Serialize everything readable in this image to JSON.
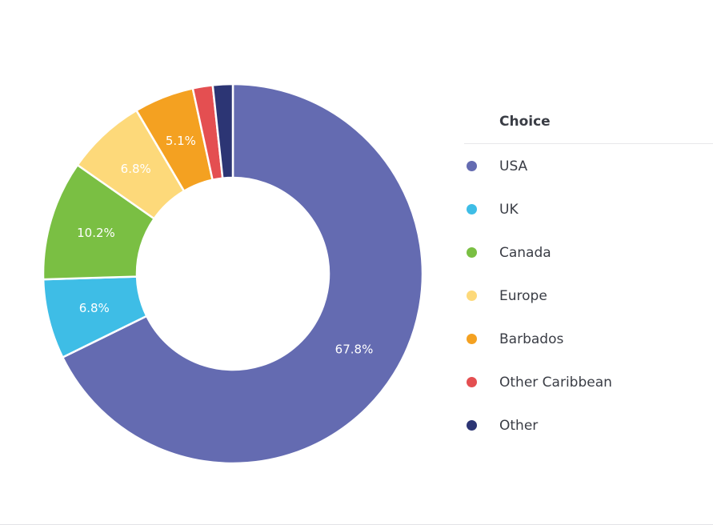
{
  "chart_data": {
    "type": "pie",
    "legend_title": "Choice",
    "legend_position": "right",
    "labels": [
      "USA",
      "UK",
      "Canada",
      "Europe",
      "Barbados",
      "Other Caribbean",
      "Other"
    ],
    "values": [
      67.8,
      6.8,
      10.2,
      6.8,
      5.1,
      1.7,
      1.7
    ],
    "value_labels": [
      "67.8%",
      "6.8%",
      "10.2%",
      "6.8%",
      "5.1%",
      "",
      ""
    ],
    "colors": [
      "#646bb1",
      "#3ebde6",
      "#7abf43",
      "#fdd97a",
      "#f4a121",
      "#e44f51",
      "#2c3574"
    ]
  }
}
